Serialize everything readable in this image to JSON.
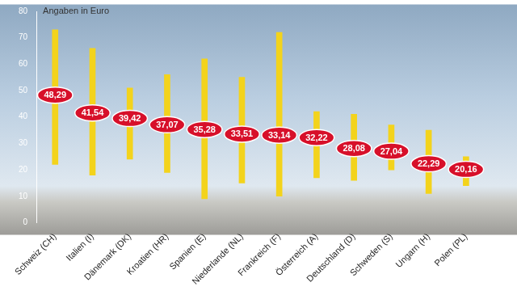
{
  "chart_data": {
    "type": "bar",
    "y_label": "Angaben in Euro",
    "categories": [
      "Schweiz (CH)",
      "Italien (I)",
      "Dänemark (DK)",
      "Kroatien (HR)",
      "Spanien (E)",
      "Niederlande (NL)",
      "Frankreich (F)",
      "Österreich (A)",
      "Deutschland (D)",
      "Schweden (S)",
      "Ungarn (H)",
      "Polen (PL)"
    ],
    "series": [
      {
        "type": "bar",
        "color": "#f3d31c",
        "low": [
          22,
          18,
          24,
          19,
          9,
          15,
          10,
          17,
          16,
          20,
          11,
          14
        ],
        "high": [
          73,
          66,
          51,
          56,
          62,
          55,
          72,
          42,
          41,
          37,
          35,
          25
        ]
      },
      {
        "type": "line",
        "color": "#d7102a",
        "marker": "ellipse",
        "values": [
          48.29,
          41.54,
          39.42,
          37.07,
          35.28,
          33.51,
          33.14,
          32.22,
          28.08,
          27.04,
          22.29,
          20.16
        ],
        "value_labels": [
          "48,29",
          "41,54",
          "39,42",
          "37,07",
          "35,28",
          "33,51",
          "33,14",
          "32,22",
          "28,08",
          "27,04",
          "22,29",
          "20,16"
        ]
      }
    ],
    "data_labels": true,
    "ylim": [
      0,
      80
    ],
    "yticks": [
      0,
      10,
      20,
      30,
      40,
      50,
      60,
      70,
      80
    ],
    "grid": false
  }
}
